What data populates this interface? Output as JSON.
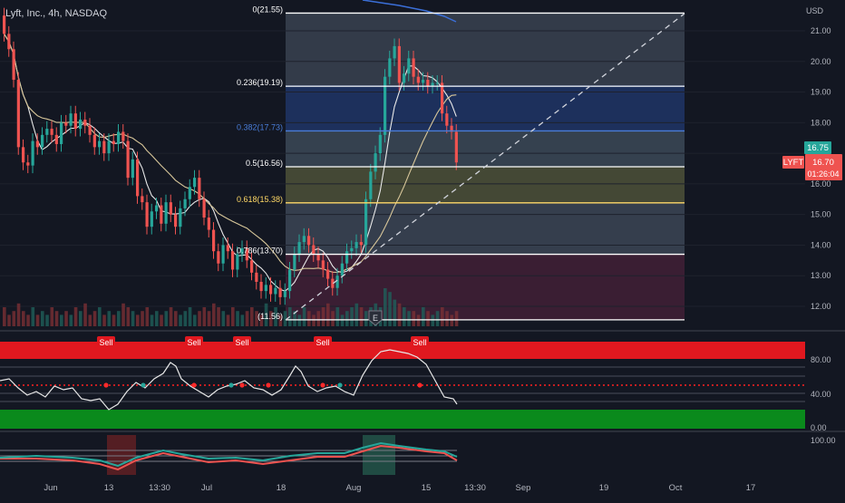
{
  "header": {
    "title": "Lyft, Inc., 4h, NASDAQ",
    "currency": "USD"
  },
  "colors": {
    "bg": "#131722",
    "up": "#26a69a",
    "down": "#ef5350",
    "grid": "#1e222d",
    "text": "#b2b5be"
  },
  "price_scale": {
    "labels": [
      "21.00",
      "20.00",
      "19.00",
      "18.00",
      "17.00",
      "16.00",
      "15.00",
      "14.00",
      "13.00",
      "12.00"
    ]
  },
  "fib_levels": [
    {
      "label": "0(21.55)",
      "color": "#ffffff"
    },
    {
      "label": "0.236(19.19)",
      "color": "#ffffff"
    },
    {
      "label": "0.382(17.73)",
      "color": "#4a7dd8"
    },
    {
      "label": "0.5(16.56)",
      "color": "#ffffff"
    },
    {
      "label": "0.618(15.38)",
      "color": "#ffd966"
    },
    {
      "label": "0.786(13.70)",
      "color": "#ffffff"
    },
    {
      "label": "(11.56)",
      "color": "#ffffff"
    }
  ],
  "price_tags": {
    "bid": "16.75",
    "ticker": "LYFT",
    "last": "16.70",
    "countdown": "01:26:04"
  },
  "signals": {
    "label": "Sell",
    "count": 5
  },
  "osc_scale": {
    "labels": [
      "80.00",
      "40.00",
      "0.00"
    ]
  },
  "bottom_scale": {
    "label": "100.00"
  },
  "earnings_marker": "E",
  "time_axis": [
    "Jun",
    "13",
    "13:30",
    "Jul",
    "18",
    "Aug",
    "15",
    "13:30",
    "Sep",
    "19",
    "Oct",
    "17"
  ],
  "chart_data": {
    "type": "candlestick",
    "title": "Lyft, Inc., 4h, NASDAQ",
    "ylim": [
      11.2,
      22.0
    ],
    "xlabels": [
      "Jun",
      "13",
      "13:30",
      "Jul",
      "18",
      "Aug",
      "15",
      "13:30",
      "Sep",
      "19",
      "Oct",
      "17"
    ],
    "fib_retracement": [
      21.55,
      19.19,
      17.73,
      16.56,
      15.38,
      13.7,
      11.56
    ],
    "last_price": 16.7,
    "bid_price": 16.75,
    "close_series": [
      20.9,
      20.4,
      19.4,
      17.2,
      16.7,
      16.6,
      17.4,
      17.2,
      17.6,
      17.8,
      17.6,
      17.3,
      18.0,
      17.9,
      18.3,
      17.8,
      18.1,
      17.9,
      17.6,
      17.2,
      17.4,
      17.0,
      17.4,
      17.3,
      17.7,
      17.4,
      16.2,
      16.8,
      15.6,
      15.4,
      14.6,
      15.1,
      15.3,
      14.7,
      15.4,
      15.0,
      14.6,
      15.2,
      15.5,
      15.9,
      16.2,
      15.5,
      14.9,
      14.5,
      13.8,
      13.4,
      14.0,
      13.8,
      13.2,
      13.7,
      13.9,
      13.5,
      13.1,
      12.8,
      12.5,
      12.7,
      12.4,
      12.6,
      12.3,
      12.5,
      13.2,
      13.7,
      14.1,
      14.3,
      14.0,
      13.7,
      13.5,
      13.2,
      12.9,
      12.6,
      13.0,
      13.4,
      13.8,
      13.9,
      14.1,
      14.0,
      15.5,
      16.4,
      17.0,
      17.6,
      19.5,
      20.1,
      20.5,
      19.3,
      19.6,
      20.1,
      19.5,
      19.3,
      19.4,
      19.2,
      19.3,
      19.3,
      18.3,
      17.9,
      17.7,
      16.7
    ],
    "volume": [
      5,
      3,
      4,
      6,
      4,
      3,
      5,
      3,
      4,
      3,
      5,
      4,
      3,
      4,
      3,
      5,
      4,
      6,
      3,
      4,
      5,
      3,
      4,
      3,
      4,
      6,
      5,
      4,
      3,
      4,
      5,
      3,
      4,
      3,
      4,
      5,
      4,
      3,
      4,
      5,
      3,
      4,
      5,
      4,
      6,
      5,
      4,
      3,
      5,
      4,
      3,
      4,
      5,
      4,
      3,
      6,
      4,
      5,
      3,
      4,
      5,
      4,
      3,
      5,
      4,
      3,
      4,
      5,
      6,
      4,
      5,
      3,
      4,
      5,
      6,
      5,
      4,
      5,
      6,
      5,
      10,
      9,
      7,
      6,
      5,
      4,
      4,
      3,
      5,
      4,
      3,
      4,
      5,
      4,
      3,
      4
    ]
  }
}
